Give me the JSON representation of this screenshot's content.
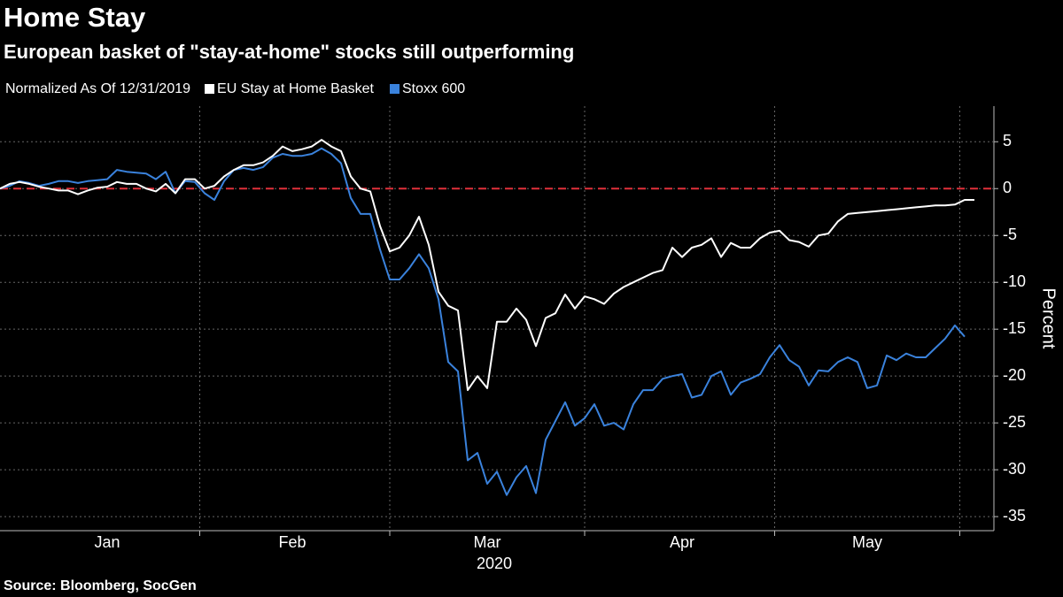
{
  "chart_data": {
    "type": "line",
    "title": "Home Stay",
    "subtitle": "European basket of \"stay-at-home\" stocks still outperforming",
    "note": "Normalized As Of 12/31/2019",
    "ylabel": "Percent",
    "xlabel": "2020",
    "source": "Source: Bloomberg, SocGen",
    "categories": [
      null,
      null,
      null,
      null,
      null,
      null,
      null,
      null,
      null,
      null,
      null,
      "Jan",
      null,
      null,
      null,
      null,
      null,
      null,
      null,
      null,
      null,
      null,
      null,
      null,
      null,
      null,
      null,
      null,
      null,
      null,
      "Feb",
      null,
      null,
      null,
      null,
      null,
      null,
      null,
      null,
      null,
      null,
      null,
      null,
      null,
      null,
      null,
      null,
      null,
      null,
      null,
      "Mar",
      null,
      null,
      null,
      null,
      null,
      null,
      null,
      null,
      null,
      null,
      null,
      null,
      null,
      null,
      null,
      null,
      null,
      null,
      null,
      "Apr",
      null,
      null,
      null,
      null,
      null,
      null,
      null,
      null,
      null,
      null,
      null,
      null,
      null,
      null,
      null,
      null,
      null,
      null,
      "May",
      null,
      null,
      null,
      null,
      null,
      null,
      null,
      null,
      null,
      null,
      null
    ],
    "series": [
      {
        "name": "EU Stay at Home Basket",
        "color": "#ffffff",
        "values": [
          0,
          0.5,
          0.7,
          0.5,
          0.2,
          0,
          -0.2,
          -0.2,
          -0.6,
          -0.2,
          0.1,
          0.2,
          0.7,
          0.5,
          0.5,
          0,
          -0.3,
          0.5,
          -0.5,
          1,
          1,
          0,
          0.3,
          1.3,
          2,
          2.5,
          2.5,
          2.8,
          3.5,
          4.5,
          4,
          4.2,
          4.5,
          5.2,
          4.5,
          4,
          1.3,
          0,
          -0.3,
          -4,
          -6.7,
          -6.3,
          -5,
          -3,
          -6,
          -11,
          -12.5,
          -13,
          -21.5,
          -20,
          -21.3,
          -14.2,
          -14.2,
          -12.8,
          -14,
          -16.8,
          -13.8,
          -13.3,
          -11.3,
          -12.8,
          -11.5,
          -11.8,
          -12.3,
          -11.2,
          -10.5,
          -10,
          -9.5,
          -9,
          -8.7,
          -6.3,
          -7.3,
          -6.3,
          -6,
          -5.3,
          -7.3,
          -5.8,
          -6.3,
          -6.3,
          -5.3,
          -4.7,
          -4.5,
          -5.5,
          -5.7,
          -6.2,
          -5,
          -4.8,
          -3.5,
          -2.7,
          -2.6,
          -2.5,
          -2.4,
          -2.3,
          -2.2,
          -2.1,
          -2,
          -1.9,
          -1.8,
          -1.8,
          -1.7,
          -1.2,
          -1.2
        ]
      },
      {
        "name": "Stoxx 600",
        "color": "#3a82dc",
        "values": [
          0,
          0.3,
          0.8,
          0.6,
          0.3,
          0.5,
          0.8,
          0.8,
          0.6,
          0.8,
          0.9,
          1,
          2,
          1.8,
          1.7,
          1.6,
          1,
          1.8,
          -0.5,
          0.8,
          0.7,
          -0.5,
          -1.2,
          0.8,
          2,
          2.2,
          2,
          2.3,
          3.3,
          3.7,
          3.5,
          3.5,
          3.7,
          4.3,
          3.7,
          2.7,
          -1,
          -2.7,
          -2.7,
          -6.5,
          -9.7,
          -9.7,
          -8.5,
          -7,
          -8.5,
          -11.8,
          -18.5,
          -19.5,
          -29,
          -28.2,
          -31.5,
          -30.2,
          -32.7,
          -30.8,
          -29.6,
          -32.5,
          -26.8,
          -24.8,
          -22.8,
          -25.3,
          -24.5,
          -23,
          -25.3,
          -25,
          -25.7,
          -23,
          -21.5,
          -21.5,
          -20.3,
          -20,
          -19.8,
          -22.3,
          -22,
          -20,
          -19.5,
          -22,
          -20.7,
          -20.3,
          -19.8,
          -18,
          -16.7,
          -18.3,
          -19,
          -21,
          -19.4,
          -19.5,
          -18.5,
          -18,
          -18.5,
          -21.3,
          -21,
          -17.8,
          -18.3,
          -17.6,
          -18,
          -18,
          -17,
          -16,
          -14.6,
          -15.8,
          null
        ]
      }
    ],
    "ylim": [
      -36.5,
      8.8
    ],
    "yticks": [
      5,
      0,
      -5,
      -10,
      -15,
      -20,
      -25,
      -30,
      -35
    ],
    "grid": true,
    "hline": {
      "value": 0,
      "color": "#e0303a"
    }
  }
}
